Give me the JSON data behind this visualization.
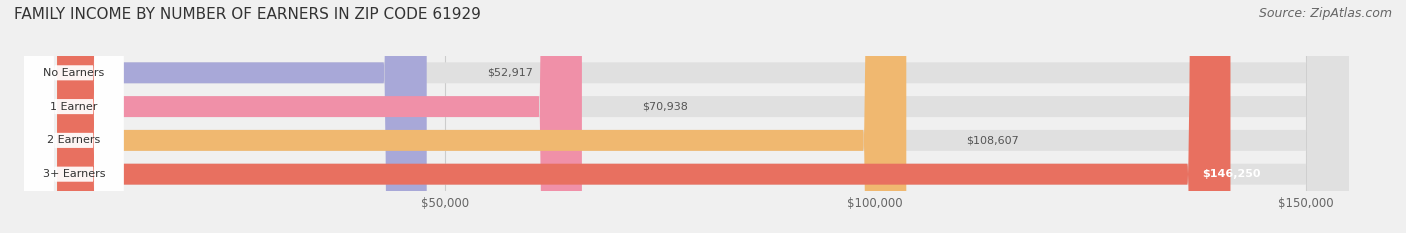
{
  "title": "FAMILY INCOME BY NUMBER OF EARNERS IN ZIP CODE 61929",
  "source": "Source: ZipAtlas.com",
  "categories": [
    "No Earners",
    "1 Earner",
    "2 Earners",
    "3+ Earners"
  ],
  "values": [
    52917,
    70938,
    108607,
    146250
  ],
  "labels": [
    "$52,917",
    "$70,938",
    "$108,607",
    "$146,250"
  ],
  "bar_colors": [
    "#a8a8d8",
    "#f090a8",
    "#f0b870",
    "#e87060"
  ],
  "background_color": "#f0f0f0",
  "bar_bg_color": "#e0e0e0",
  "xlim": [
    0,
    160000
  ],
  "xticks": [
    50000,
    100000,
    150000
  ],
  "xticklabels": [
    "$50,000",
    "$100,000",
    "$150,000"
  ],
  "title_fontsize": 11,
  "source_fontsize": 9,
  "bar_height": 0.62
}
